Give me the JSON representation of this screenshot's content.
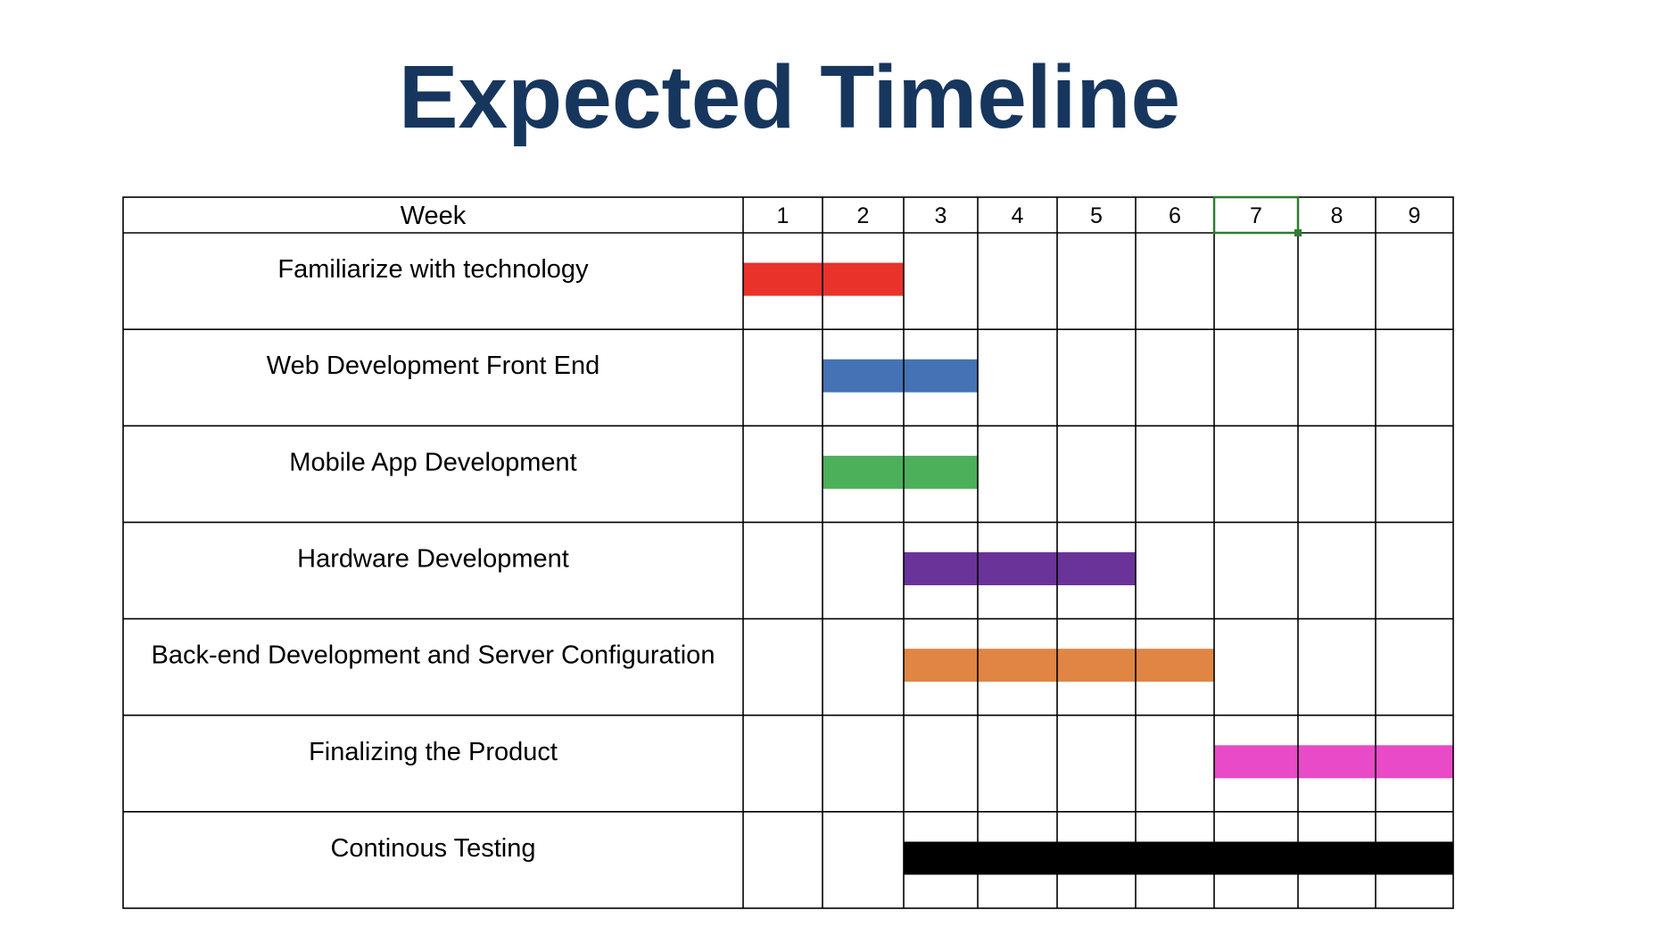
{
  "title": "Expected Timeline",
  "colors": {
    "title": "#17365d",
    "grid": "#000000",
    "selected_cell": "#2e7d32"
  },
  "chart_data": {
    "type": "gantt",
    "header_label": "Week",
    "weeks": [
      "1",
      "2",
      "3",
      "4",
      "5",
      "6",
      "7",
      "8",
      "9"
    ],
    "selected_week": "7",
    "tasks": [
      {
        "name": "Familiarize with technology",
        "start_week": 1,
        "end_week": 2,
        "color": "#e8322a"
      },
      {
        "name": "Web Development Front End",
        "start_week": 2,
        "end_week": 3,
        "color": "#4472b4"
      },
      {
        "name": "Mobile App Development",
        "start_week": 2,
        "end_week": 3,
        "color": "#4caf5a"
      },
      {
        "name": "Hardware Development",
        "start_week": 3,
        "end_week": 5,
        "color": "#6a3399"
      },
      {
        "name": "Back-end Development and Server Configuration",
        "start_week": 3,
        "end_week": 6,
        "color": "#e08544"
      },
      {
        "name": "Finalizing the Product",
        "start_week": 7,
        "end_week": 9,
        "color": "#e84ac8"
      },
      {
        "name": "Continous Testing",
        "start_week": 3,
        "end_week": 9,
        "color": "#000000"
      }
    ]
  }
}
